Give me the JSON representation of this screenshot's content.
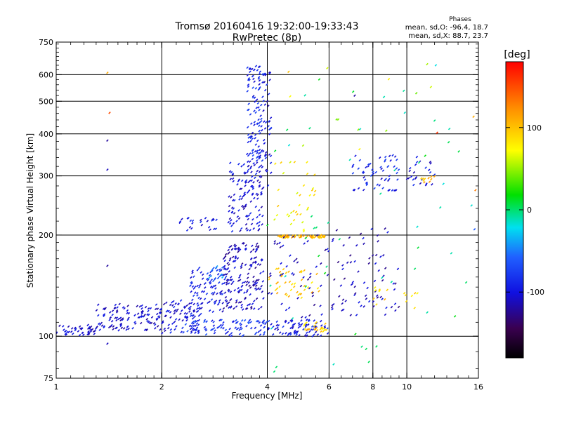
{
  "chart_data": {
    "type": "scatter",
    "title_line1": "Tromsø 20160416 19:32:00-19:33:43",
    "title_line2": "RwPretec (8p)",
    "stats": {
      "heading": "Phases",
      "line1": "mean, sd,O: -96.4, 18.7",
      "line2": "mean, sd,X:  88.7, 23.7"
    },
    "xlabel": "Frequency [MHz]",
    "ylabel": "Stationary phase Virtual Height [km]",
    "x_scale": "log",
    "y_scale": "log",
    "xlim": [
      1,
      16
    ],
    "ylim": [
      75,
      750
    ],
    "x_ticks": [
      {
        "value": 1,
        "label": "1"
      },
      {
        "value": 2,
        "label": "2"
      },
      {
        "value": 4,
        "label": "4"
      },
      {
        "value": 6,
        "label": "6"
      },
      {
        "value": 8,
        "label": "8"
      },
      {
        "value": 10,
        "label": "10"
      },
      {
        "value": 16,
        "label": "16"
      }
    ],
    "y_ticks": [
      {
        "value": 75,
        "label": "75"
      },
      {
        "value": 100,
        "label": "100"
      },
      {
        "value": 200,
        "label": "200"
      },
      {
        "value": 300,
        "label": "300"
      },
      {
        "value": 400,
        "label": "400"
      },
      {
        "value": 500,
        "label": "500"
      },
      {
        "value": 600,
        "label": "600"
      },
      {
        "value": 750,
        "label": "750"
      }
    ],
    "grid_x": [
      2,
      4,
      6,
      8,
      10
    ],
    "grid_y": [
      100,
      200,
      300,
      400,
      500,
      600
    ],
    "colorbar": {
      "label": "[deg]",
      "range": [
        -180,
        180
      ],
      "ticks": [
        {
          "value": 100,
          "label": "100"
        },
        {
          "value": 0,
          "label": "0"
        },
        {
          "value": -100,
          "label": "-100"
        }
      ]
    },
    "clusters": [
      {
        "x": [
          1.0,
          1.3
        ],
        "y": [
          100,
          108
        ],
        "phase": -105,
        "n": 45
      },
      {
        "x": [
          1.3,
          2.0
        ],
        "y": [
          104,
          125
        ],
        "phase": -105,
        "n": 120
      },
      {
        "x": [
          2.0,
          2.6
        ],
        "y": [
          102,
          128
        ],
        "phase": -100,
        "n": 90
      },
      {
        "x": [
          2.4,
          3.1
        ],
        "y": [
          118,
          160
        ],
        "phase": -95,
        "n": 90
      },
      {
        "x": [
          2.7,
          3.0
        ],
        "y": [
          145,
          162
        ],
        "phase": -50,
        "n": 18
      },
      {
        "x": [
          3.0,
          3.9
        ],
        "y": [
          120,
          190
        ],
        "phase": -110,
        "n": 170
      },
      {
        "x": [
          3.1,
          3.9
        ],
        "y": [
          205,
          330
        ],
        "phase": -100,
        "n": 130
      },
      {
        "x": [
          3.5,
          3.9
        ],
        "y": [
          330,
          640
        ],
        "phase": -90,
        "n": 110
      },
      {
        "x": [
          3.9,
          4.1
        ],
        "y": [
          280,
          620
        ],
        "phase": -100,
        "n": 40
      },
      {
        "x": [
          2.2,
          2.9
        ],
        "y": [
          205,
          225
        ],
        "phase": -95,
        "n": 25
      },
      {
        "x": [
          2.3,
          4.0
        ],
        "y": [
          100,
          112
        ],
        "phase": -80,
        "n": 90
      },
      {
        "x": [
          4.0,
          6.0
        ],
        "y": [
          100,
          112
        ],
        "phase": -95,
        "n": 80
      },
      {
        "x": [
          5.1,
          5.9
        ],
        "y": [
          103,
          110
        ],
        "phase": 95,
        "n": 25
      },
      {
        "x": [
          4.0,
          5.8
        ],
        "y": [
          130,
          160
        ],
        "phase": 95,
        "n": 45
      },
      {
        "x": [
          4.3,
          5.9
        ],
        "y": [
          196,
          200
        ],
        "phase": 100,
        "n": 60
      },
      {
        "x": [
          4.1,
          5.5
        ],
        "y": [
          205,
          330
        ],
        "phase": 80,
        "n": 35
      },
      {
        "x": [
          4.0,
          6.0
        ],
        "y": [
          112,
          200
        ],
        "phase": -110,
        "n": 50
      },
      {
        "x": [
          6.0,
          9.5
        ],
        "y": [
          115,
          210
        ],
        "phase": -110,
        "n": 80
      },
      {
        "x": [
          7.0,
          9.5
        ],
        "y": [
          270,
          350
        ],
        "phase": -90,
        "n": 60
      },
      {
        "x": [
          10.0,
          12.0
        ],
        "y": [
          280,
          350
        ],
        "phase": -100,
        "n": 25
      },
      {
        "x": [
          11.0,
          12.0
        ],
        "y": [
          285,
          300
        ],
        "phase": 100,
        "n": 10
      },
      {
        "x": [
          8.0,
          11.0
        ],
        "y": [
          120,
          140
        ],
        "phase": 90,
        "n": 15
      },
      {
        "x": [
          4.2,
          12.0
        ],
        "y": [
          350,
          650
        ],
        "phase": 60,
        "n": 12
      },
      {
        "x": [
          4.0,
          16.0
        ],
        "y": [
          78,
          600
        ],
        "phase": 0,
        "n": 55
      }
    ],
    "outliers": [
      {
        "x": 1.4,
        "y": 608,
        "phase": 110
      },
      {
        "x": 1.42,
        "y": 462,
        "phase": 150
      },
      {
        "x": 1.4,
        "y": 382,
        "phase": -120
      },
      {
        "x": 1.4,
        "y": 313,
        "phase": -110
      },
      {
        "x": 1.4,
        "y": 162,
        "phase": -120
      },
      {
        "x": 1.4,
        "y": 95,
        "phase": -110
      },
      {
        "x": 12.1,
        "y": 640,
        "phase": -20
      },
      {
        "x": 12.2,
        "y": 403,
        "phase": 160
      },
      {
        "x": 7.1,
        "y": 520,
        "phase": -120
      },
      {
        "x": 15.5,
        "y": 450,
        "phase": 110
      },
      {
        "x": 15.7,
        "y": 272,
        "phase": 130
      },
      {
        "x": 15.6,
        "y": 208,
        "phase": -60
      },
      {
        "x": 4.6,
        "y": 612,
        "phase": 100
      }
    ]
  }
}
